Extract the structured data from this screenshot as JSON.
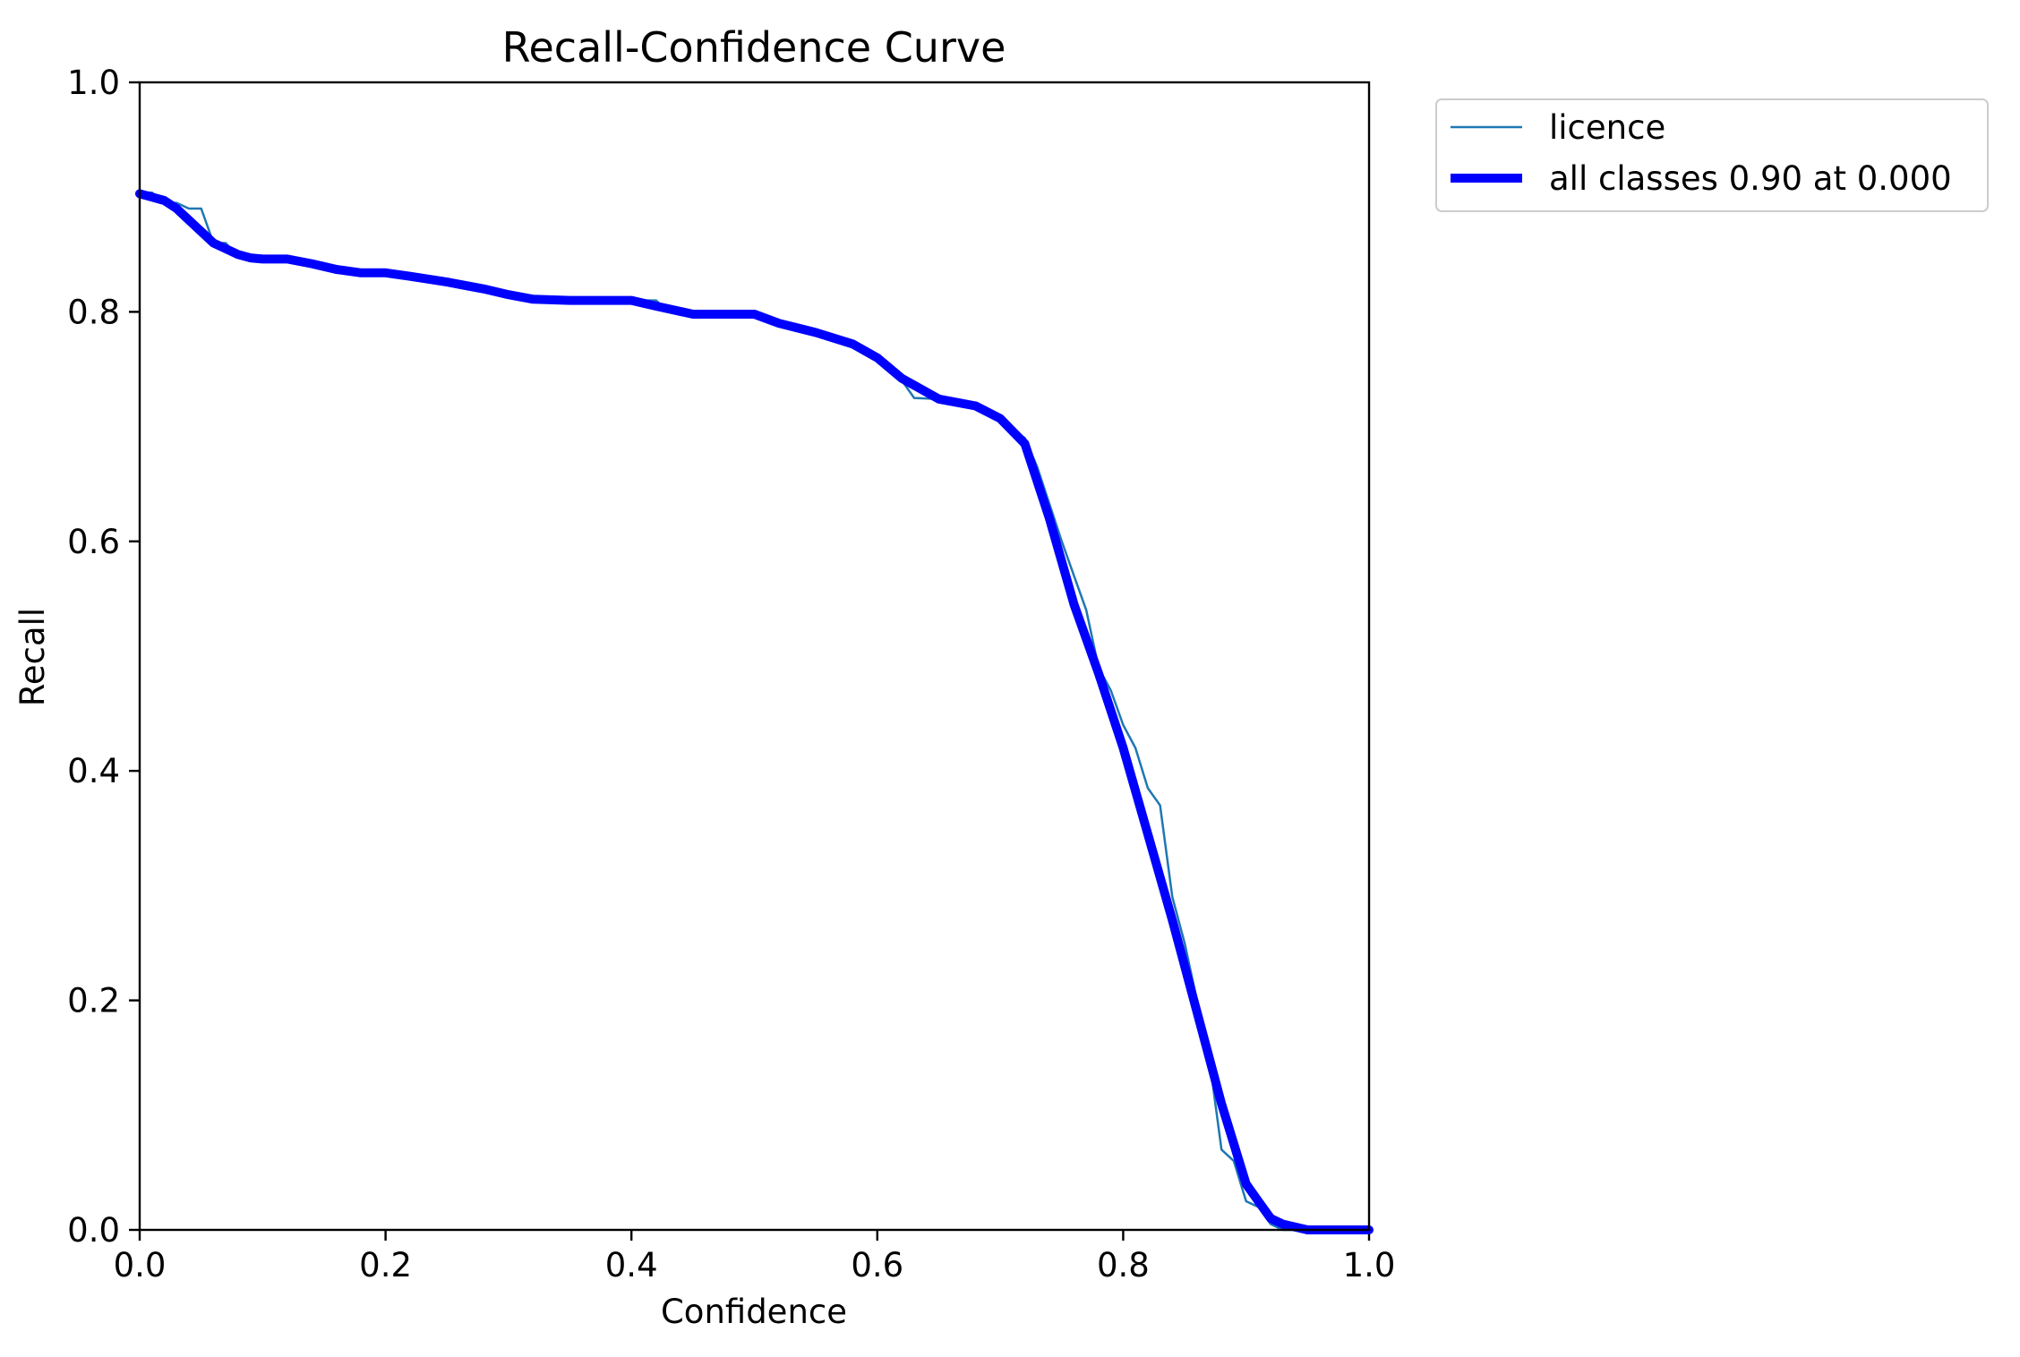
{
  "chart_data": {
    "type": "line",
    "title": "Recall-Confidence Curve",
    "xlabel": "Confidence",
    "ylabel": "Recall",
    "xlim": [
      0,
      1
    ],
    "ylim": [
      0,
      1
    ],
    "xticks": [
      "0.0",
      "0.2",
      "0.4",
      "0.6",
      "0.8",
      "1.0"
    ],
    "yticks": [
      "0.0",
      "0.2",
      "0.4",
      "0.6",
      "0.8",
      "1.0"
    ],
    "grid": false,
    "legend_position": "outside-top-right",
    "series": [
      {
        "name": "licence",
        "color": "#1f77b4",
        "width": "thin",
        "x": [
          0.0,
          0.01,
          0.02,
          0.03,
          0.04,
          0.05,
          0.06,
          0.07,
          0.08,
          0.09,
          0.1,
          0.12,
          0.14,
          0.16,
          0.18,
          0.2,
          0.22,
          0.25,
          0.28,
          0.3,
          0.32,
          0.35,
          0.38,
          0.4,
          0.42,
          0.43,
          0.45,
          0.48,
          0.5,
          0.52,
          0.55,
          0.58,
          0.6,
          0.62,
          0.63,
          0.65,
          0.68,
          0.7,
          0.72,
          0.73,
          0.75,
          0.76,
          0.77,
          0.78,
          0.79,
          0.8,
          0.81,
          0.82,
          0.83,
          0.84,
          0.85,
          0.86,
          0.87,
          0.88,
          0.89,
          0.9,
          0.91,
          0.92,
          0.93,
          0.95,
          1.0
        ],
        "y": [
          0.904,
          0.904,
          0.895,
          0.895,
          0.89,
          0.89,
          0.86,
          0.86,
          0.848,
          0.848,
          0.846,
          0.846,
          0.843,
          0.836,
          0.834,
          0.834,
          0.832,
          0.826,
          0.82,
          0.815,
          0.811,
          0.81,
          0.81,
          0.81,
          0.81,
          0.8,
          0.798,
          0.798,
          0.798,
          0.79,
          0.78,
          0.77,
          0.76,
          0.74,
          0.725,
          0.724,
          0.718,
          0.705,
          0.69,
          0.665,
          0.6,
          0.57,
          0.54,
          0.49,
          0.47,
          0.44,
          0.42,
          0.385,
          0.37,
          0.29,
          0.25,
          0.2,
          0.15,
          0.07,
          0.06,
          0.025,
          0.02,
          0.005,
          0.0,
          0.0,
          0.0
        ]
      },
      {
        "name": "all classes 0.90 at 0.000",
        "color": "#0000ff",
        "width": "thick",
        "x": [
          0.0,
          0.01,
          0.02,
          0.03,
          0.04,
          0.05,
          0.06,
          0.07,
          0.08,
          0.09,
          0.1,
          0.12,
          0.14,
          0.16,
          0.18,
          0.2,
          0.22,
          0.25,
          0.28,
          0.3,
          0.32,
          0.35,
          0.38,
          0.4,
          0.42,
          0.45,
          0.48,
          0.5,
          0.52,
          0.55,
          0.58,
          0.6,
          0.62,
          0.65,
          0.68,
          0.7,
          0.72,
          0.74,
          0.76,
          0.78,
          0.8,
          0.82,
          0.84,
          0.86,
          0.88,
          0.9,
          0.91,
          0.92,
          0.93,
          0.95,
          1.0
        ],
        "y": [
          0.903,
          0.9,
          0.897,
          0.89,
          0.88,
          0.87,
          0.86,
          0.855,
          0.85,
          0.847,
          0.846,
          0.846,
          0.842,
          0.837,
          0.834,
          0.834,
          0.831,
          0.826,
          0.82,
          0.815,
          0.811,
          0.81,
          0.81,
          0.81,
          0.805,
          0.798,
          0.798,
          0.798,
          0.79,
          0.782,
          0.772,
          0.76,
          0.742,
          0.724,
          0.718,
          0.707,
          0.685,
          0.62,
          0.545,
          0.485,
          0.42,
          0.345,
          0.27,
          0.19,
          0.11,
          0.04,
          0.025,
          0.01,
          0.005,
          0.0,
          0.0
        ]
      }
    ]
  }
}
